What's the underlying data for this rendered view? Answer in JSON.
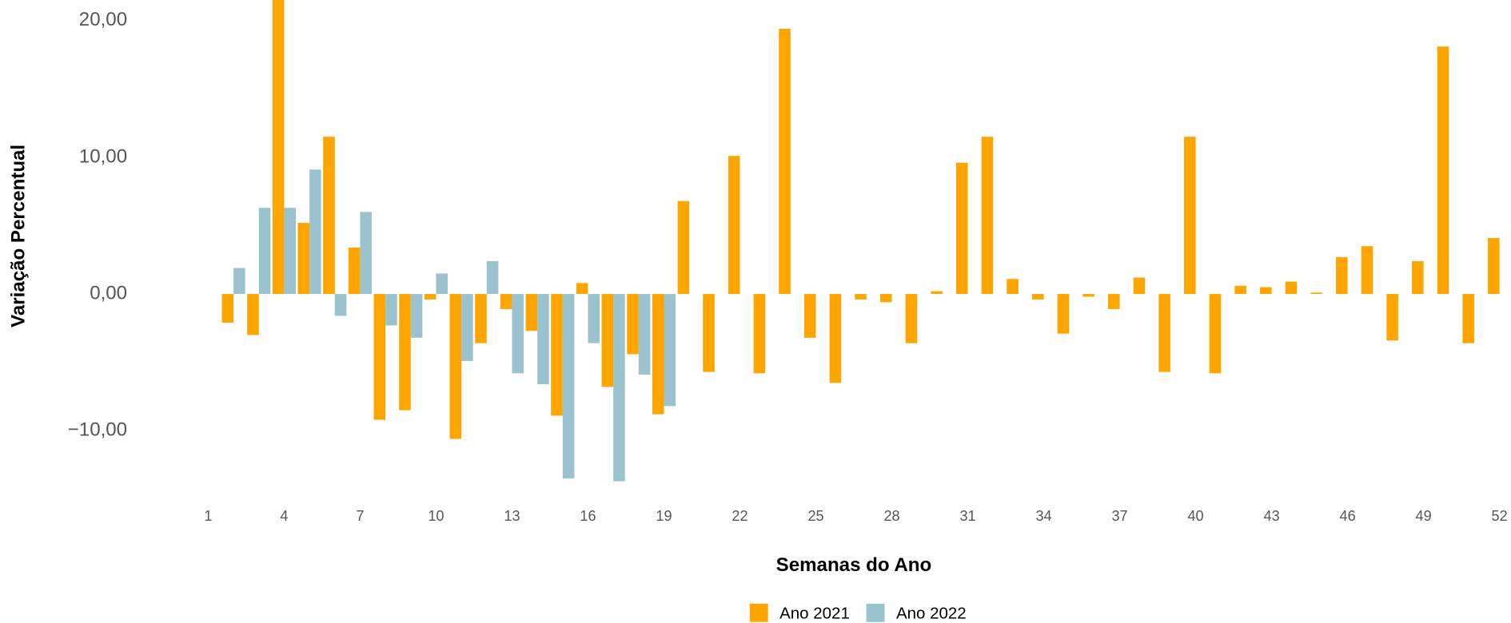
{
  "chart_data": {
    "type": "bar",
    "x_label": "Semanas do Ano",
    "y_label": "Variação Percentual",
    "x": [
      1,
      2,
      3,
      4,
      5,
      6,
      7,
      8,
      9,
      10,
      11,
      12,
      13,
      14,
      15,
      16,
      17,
      18,
      19,
      20,
      21,
      22,
      23,
      24,
      25,
      26,
      27,
      28,
      29,
      30,
      31,
      32,
      33,
      34,
      35,
      36,
      37,
      38,
      39,
      40,
      41,
      42,
      43,
      44,
      45,
      46,
      47,
      48,
      49,
      50,
      51,
      52
    ],
    "series": [
      {
        "name": "Ano 2021",
        "color": "#FFA500",
        "values": [
          null,
          -2.1,
          -3.0,
          22.5,
          5.2,
          11.5,
          3.4,
          -9.2,
          -8.5,
          -0.4,
          -10.6,
          -3.6,
          -1.1,
          -2.7,
          -8.9,
          0.8,
          -6.8,
          -4.4,
          -8.8,
          6.8,
          -5.7,
          10.1,
          -5.8,
          19.4,
          -3.2,
          -6.5,
          -0.4,
          -0.6,
          -3.6,
          0.2,
          9.6,
          11.5,
          1.1,
          -0.4,
          -2.9,
          -0.2,
          -1.1,
          1.2,
          -5.7,
          11.5,
          -5.8,
          0.6,
          0.5,
          0.9,
          0.1,
          2.7,
          3.5,
          -3.4,
          2.4,
          18.1,
          -3.6,
          4.1
        ]
      },
      {
        "name": "Ano 2022",
        "color": "#9BC2CF",
        "values": [
          null,
          1.9,
          6.3,
          6.3,
          9.1,
          -1.6,
          6.0,
          -2.3,
          -3.2,
          1.5,
          -4.9,
          2.4,
          -5.8,
          -6.6,
          -13.5,
          -3.6,
          -13.7,
          -5.9,
          -8.2,
          null,
          null,
          null,
          null,
          null,
          null,
          null,
          null,
          null,
          null,
          null,
          null,
          null,
          null,
          null,
          null,
          null,
          null,
          null,
          null,
          null,
          null,
          null,
          null,
          null,
          null,
          null,
          null,
          null,
          null,
          null,
          null,
          null
        ]
      }
    ],
    "xlim": [
      0.5,
      52.5
    ],
    "xticks": [
      1,
      4,
      7,
      10,
      13,
      16,
      19,
      22,
      25,
      28,
      31,
      34,
      37,
      40,
      43,
      46,
      49,
      52
    ],
    "ylim": [
      -14.5,
      21.5
    ],
    "yticks": [
      {
        "value": -10,
        "label": "−10,00"
      },
      {
        "value": 0,
        "label": "0,00"
      },
      {
        "value": 10,
        "label": "10,00"
      },
      {
        "value": 20,
        "label": "20,00"
      }
    ],
    "grid": false,
    "legend": "bottom"
  }
}
